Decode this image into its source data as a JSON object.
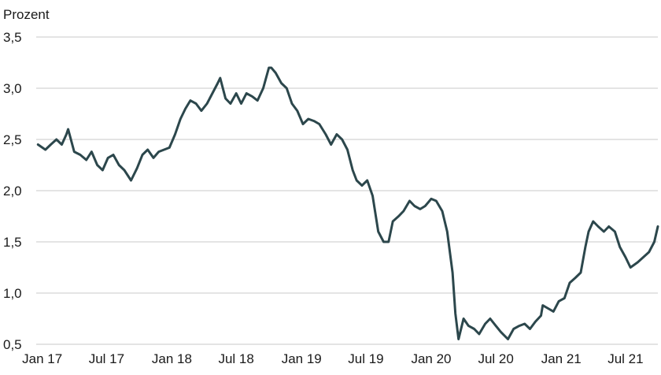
{
  "chart_data": {
    "type": "line",
    "ylabel": "Prozent",
    "ylim": [
      0.5,
      3.5
    ],
    "y_ticks": [
      "3,5",
      "3,0",
      "2,5",
      "2,0",
      "1,5",
      "1,0",
      "0,5"
    ],
    "y_tick_values": [
      3.5,
      3.0,
      2.5,
      2.0,
      1.5,
      1.0,
      0.5
    ],
    "x_ticks": [
      "Jan 17",
      "Jul 17",
      "Jan 18",
      "Jul 18",
      "Jan 19",
      "Jul 19",
      "Jan 20",
      "Jul 20",
      "Jan 21",
      "Jul 21"
    ],
    "x_tick_dates": [
      "2017-01",
      "2017-07",
      "2018-01",
      "2018-07",
      "2019-01",
      "2019-07",
      "2020-01",
      "2020-07",
      "2021-01",
      "2021-07"
    ],
    "xlim": [
      "2016-12-15",
      "2021-09-30"
    ],
    "grid": true,
    "legend": "none",
    "series": [
      {
        "color": "#2c474c",
        "x": [
          "2016-12-20",
          "2017-01-10",
          "2017-01-25",
          "2017-02-10",
          "2017-02-25",
          "2017-03-10",
          "2017-03-15",
          "2017-04-01",
          "2017-04-18",
          "2017-05-05",
          "2017-05-20",
          "2017-06-05",
          "2017-06-20",
          "2017-07-05",
          "2017-07-20",
          "2017-08-05",
          "2017-08-20",
          "2017-09-08",
          "2017-09-25",
          "2017-10-10",
          "2017-10-25",
          "2017-11-10",
          "2017-11-25",
          "2017-12-10",
          "2017-12-25",
          "2018-01-10",
          "2018-01-25",
          "2018-02-08",
          "2018-02-22",
          "2018-03-10",
          "2018-03-25",
          "2018-04-10",
          "2018-04-25",
          "2018-05-10",
          "2018-05-17",
          "2018-06-01",
          "2018-06-15",
          "2018-07-01",
          "2018-07-15",
          "2018-07-30",
          "2018-08-15",
          "2018-08-30",
          "2018-09-15",
          "2018-10-01",
          "2018-10-08",
          "2018-10-20",
          "2018-11-05",
          "2018-11-20",
          "2018-12-05",
          "2018-12-20",
          "2019-01-05",
          "2019-01-20",
          "2019-02-05",
          "2019-02-20",
          "2019-03-10",
          "2019-03-25",
          "2019-04-10",
          "2019-04-25",
          "2019-05-10",
          "2019-05-25",
          "2019-06-05",
          "2019-06-20",
          "2019-07-05",
          "2019-07-20",
          "2019-08-05",
          "2019-08-20",
          "2019-09-03",
          "2019-09-15",
          "2019-10-01",
          "2019-10-15",
          "2019-11-01",
          "2019-11-15",
          "2019-12-01",
          "2019-12-15",
          "2020-01-01",
          "2020-01-15",
          "2020-02-01",
          "2020-02-15",
          "2020-03-01",
          "2020-03-09",
          "2020-03-18",
          "2020-04-01",
          "2020-04-15",
          "2020-05-01",
          "2020-05-15",
          "2020-06-01",
          "2020-06-15",
          "2020-07-01",
          "2020-07-15",
          "2020-08-04",
          "2020-08-20",
          "2020-09-05",
          "2020-09-20",
          "2020-10-05",
          "2020-10-20",
          "2020-11-05",
          "2020-11-10",
          "2020-11-25",
          "2020-12-10",
          "2020-12-25",
          "2021-01-10",
          "2021-01-25",
          "2021-02-10",
          "2021-02-25",
          "2021-03-10",
          "2021-03-19",
          "2021-04-01",
          "2021-04-15",
          "2021-05-01",
          "2021-05-15",
          "2021-06-01",
          "2021-06-15",
          "2021-07-01",
          "2021-07-15",
          "2021-08-04",
          "2021-08-20",
          "2021-09-05",
          "2021-09-20",
          "2021-09-30"
        ],
        "values": [
          2.45,
          2.4,
          2.45,
          2.5,
          2.45,
          2.55,
          2.6,
          2.38,
          2.35,
          2.3,
          2.38,
          2.25,
          2.2,
          2.32,
          2.35,
          2.25,
          2.2,
          2.1,
          2.22,
          2.35,
          2.4,
          2.32,
          2.38,
          2.4,
          2.42,
          2.55,
          2.7,
          2.8,
          2.88,
          2.85,
          2.78,
          2.85,
          2.95,
          3.05,
          3.1,
          2.9,
          2.85,
          2.95,
          2.85,
          2.95,
          2.92,
          2.88,
          3.0,
          3.2,
          3.2,
          3.15,
          3.05,
          3.0,
          2.85,
          2.78,
          2.65,
          2.7,
          2.68,
          2.65,
          2.55,
          2.45,
          2.55,
          2.5,
          2.4,
          2.2,
          2.1,
          2.05,
          2.1,
          1.95,
          1.6,
          1.5,
          1.5,
          1.7,
          1.75,
          1.8,
          1.9,
          1.85,
          1.82,
          1.85,
          1.92,
          1.9,
          1.8,
          1.6,
          1.2,
          0.8,
          0.55,
          0.75,
          0.68,
          0.65,
          0.6,
          0.7,
          0.75,
          0.68,
          0.62,
          0.55,
          0.65,
          0.68,
          0.7,
          0.65,
          0.72,
          0.78,
          0.88,
          0.85,
          0.82,
          0.92,
          0.95,
          1.1,
          1.15,
          1.2,
          1.45,
          1.6,
          1.7,
          1.65,
          1.6,
          1.65,
          1.6,
          1.45,
          1.35,
          1.25,
          1.3,
          1.35,
          1.4,
          1.5,
          1.65
        ]
      }
    ]
  }
}
